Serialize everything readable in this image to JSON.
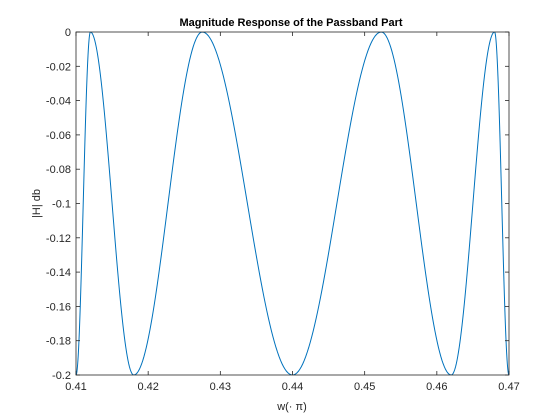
{
  "chart_data": {
    "type": "line",
    "title": "Magnitude Response of the Passband Part",
    "xlabel": "w(· π)",
    "ylabel": "|H| db",
    "xlim": [
      0.41,
      0.47
    ],
    "ylim": [
      -0.2,
      0
    ],
    "xticks": [
      0.41,
      0.42,
      0.43,
      0.44,
      0.45,
      0.46,
      0.47
    ],
    "xtick_labels": [
      "0.41",
      "0.42",
      "0.43",
      "0.44",
      "0.45",
      "0.46",
      "0.47"
    ],
    "yticks": [
      0,
      -0.02,
      -0.04,
      -0.06,
      -0.08,
      -0.1,
      -0.12,
      -0.14,
      -0.16,
      -0.18,
      -0.2
    ],
    "ytick_labels": [
      "0",
      "-0.02",
      "-0.04",
      "-0.06",
      "-0.08",
      "-0.1",
      "-0.12",
      "-0.14",
      "-0.16",
      "-0.18",
      "-0.2"
    ],
    "grid": false,
    "line_color": "#0072bd",
    "series": [
      {
        "extrema": [
          {
            "x": 0.41,
            "y": -0.2
          },
          {
            "x": 0.412,
            "y": 0
          },
          {
            "x": 0.418,
            "y": -0.2
          },
          {
            "x": 0.4275,
            "y": 0
          },
          {
            "x": 0.44,
            "y": -0.2
          },
          {
            "x": 0.4523,
            "y": 0
          },
          {
            "x": 0.462,
            "y": -0.2
          },
          {
            "x": 0.468,
            "y": 0
          },
          {
            "x": 0.47,
            "y": -0.2
          }
        ]
      }
    ]
  }
}
